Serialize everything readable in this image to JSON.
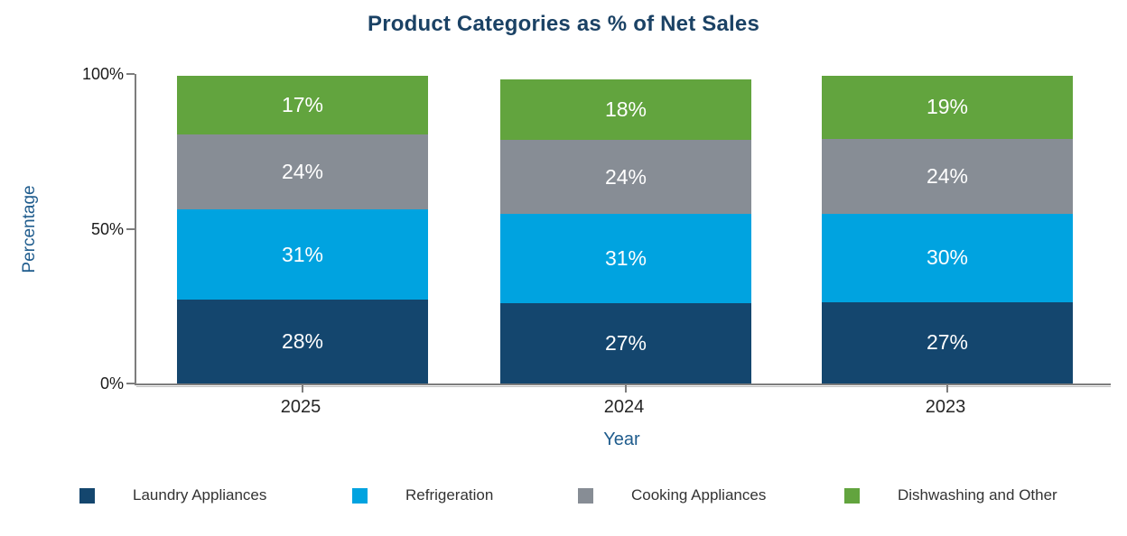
{
  "title": "Product Categories as % of Net Sales",
  "chart_data": {
    "type": "bar",
    "stacked": true,
    "title": "Product Categories as % of Net Sales",
    "categories": [
      "2025",
      "2024",
      "2023"
    ],
    "series": [
      {
        "name": "Laundry Appliances",
        "color": "#14466e",
        "values": [
          28,
          27,
          27
        ]
      },
      {
        "name": "Refrigeration",
        "color": "#00a3e0",
        "values": [
          31,
          31,
          30
        ]
      },
      {
        "name": "Cooking Appliances",
        "color": "#878d95",
        "values": [
          24,
          24,
          24
        ]
      },
      {
        "name": "Dishwashing and Other",
        "color": "#62a43e",
        "values": [
          17,
          18,
          19
        ]
      }
    ],
    "bar_value_labels": [
      [
        "28%",
        "31%",
        "24%",
        "17%"
      ],
      [
        "27%",
        "31%",
        "24%",
        "18%"
      ],
      [
        "27%",
        "30%",
        "24%",
        "19%"
      ]
    ],
    "xlabel": "Year",
    "ylabel": "Percentage",
    "ylim": [
      0,
      100
    ],
    "yticks": [
      {
        "label": "0%",
        "value": 0
      },
      {
        "label": "50%",
        "value": 50
      },
      {
        "label": "100%",
        "value": 100
      }
    ],
    "grid": false,
    "legend_position": "bottom",
    "layout_hints": {
      "drawn_bar_totals_pct": [
        99.5,
        98.2,
        99.5
      ],
      "value_labels_inside": true,
      "value_label_color": "#ffffff"
    }
  },
  "colors": {
    "title_text": "#1b4265",
    "axis_title_text": "#1f5c8d",
    "tick_text": "#1a1a1a",
    "category_text": "#262626",
    "legend_text": "#333333",
    "axis_line": "#7d7d7d",
    "background": "#ffffff"
  }
}
